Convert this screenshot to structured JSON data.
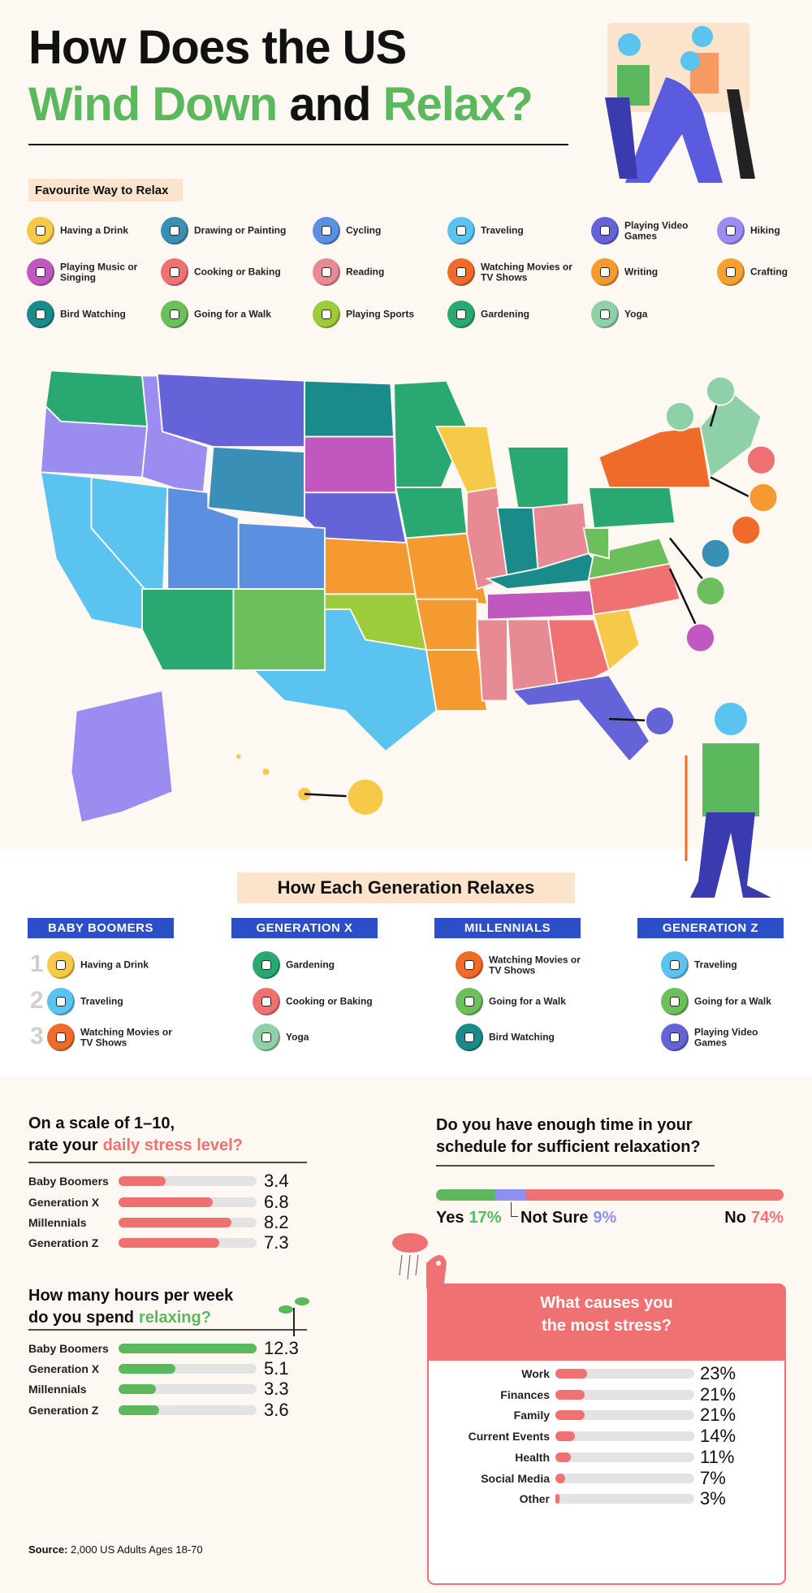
{
  "header": {
    "line1": "How Does the US",
    "line2": [
      "Wind Down",
      "and",
      "Relax?"
    ]
  },
  "legend": {
    "title": "Favourite Way to Relax",
    "items": [
      {
        "name": "Having a Drink",
        "color": "#f7c948"
      },
      {
        "name": "Drawing or Painting",
        "color": "#3a8fb7"
      },
      {
        "name": "Cycling",
        "color": "#5b8fe0"
      },
      {
        "name": "Traveling",
        "color": "#5bc3ef"
      },
      {
        "name": "Playing Video Games",
        "color": "#6464d8"
      },
      {
        "name": "Hiking",
        "color": "#9b8cf0"
      },
      {
        "name": "Playing Music or Singing",
        "color": "#c058c0"
      },
      {
        "name": "Cooking or Baking",
        "color": "#f07171"
      },
      {
        "name": "Reading",
        "color": "#e88a93"
      },
      {
        "name": "Watching Movies or TV Shows",
        "color": "#f06a2a"
      },
      {
        "name": "Writing",
        "color": "#f59a30"
      },
      {
        "name": "Crafting",
        "color": "#f5a030"
      },
      {
        "name": "Bird Watching",
        "color": "#1a8a8a"
      },
      {
        "name": "Going for a Walk",
        "color": "#6cbf5c"
      },
      {
        "name": "Playing Sports",
        "color": "#9ccc3c"
      },
      {
        "name": "Gardening",
        "color": "#2aa872"
      },
      {
        "name": "Yoga",
        "color": "#8ed0a8"
      }
    ]
  },
  "generations": {
    "title": "How Each Generation Relaxes",
    "ranks": [
      1,
      2,
      3
    ],
    "groups": [
      {
        "name": "BABY BOOMERS",
        "items": [
          "Having a Drink",
          "Traveling",
          "Watching Movies or TV Shows"
        ]
      },
      {
        "name": "GENERATION X",
        "items": [
          "Gardening",
          "Cooking or Baking",
          "Yoga"
        ]
      },
      {
        "name": "MILLENNIALS",
        "items": [
          "Watching Movies or TV Shows",
          "Going for a Walk",
          "Bird Watching"
        ]
      },
      {
        "name": "GENERATION Z",
        "items": [
          "Traveling",
          "Going for a Walk",
          "Playing Video Games"
        ]
      }
    ]
  },
  "chart_data": [
    {
      "type": "bar",
      "title_lines": [
        "On a scale of 1–10,",
        "rate your"
      ],
      "title_highlight": "daily stress level?",
      "categories": [
        "Baby Boomers",
        "Generation X",
        "Millennials",
        "Generation Z"
      ],
      "values": [
        3.4,
        6.8,
        8.2,
        7.3
      ],
      "xlim": [
        0,
        10
      ],
      "color": "#f07171",
      "track_color": "#e3e3e3"
    },
    {
      "type": "bar",
      "title_lines": [
        "How many hours per week",
        "do you spend"
      ],
      "title_highlight": "relaxing?",
      "categories": [
        "Baby Boomers",
        "Generation X",
        "Millennials",
        "Generation Z"
      ],
      "values": [
        12.3,
        5.1,
        3.3,
        3.6
      ],
      "xlim": [
        0,
        12.3
      ],
      "color": "#5cb85c",
      "track_color": "#e3e3e3"
    },
    {
      "type": "stacked-bar",
      "title_lines": [
        "Do you have enough time in your",
        "schedule for sufficient relaxation?"
      ],
      "categories": [
        "Yes",
        "Not Sure",
        "No"
      ],
      "values": [
        17,
        9,
        74
      ],
      "value_labels": [
        "17%",
        "9%",
        "74%"
      ],
      "colors": [
        "#5cb85c",
        "#8f8ff0",
        "#f07171"
      ],
      "xlim": [
        0,
        100
      ]
    },
    {
      "type": "bar",
      "title_lines": [
        "What causes you",
        "the most stress?"
      ],
      "categories": [
        "Work",
        "Finances",
        "Family",
        "Current Events",
        "Health",
        "Social Media",
        "Other"
      ],
      "values": [
        23,
        21,
        21,
        14,
        11,
        7,
        3
      ],
      "value_labels": [
        "23%",
        "21%",
        "21%",
        "14%",
        "11%",
        "7%",
        "3%"
      ],
      "xlim": [
        0,
        100
      ],
      "color": "#f07171",
      "track_color": "#e3e3e3"
    }
  ],
  "source": {
    "label": "Source:",
    "text": "2,000 US Adults Ages 18-70"
  }
}
